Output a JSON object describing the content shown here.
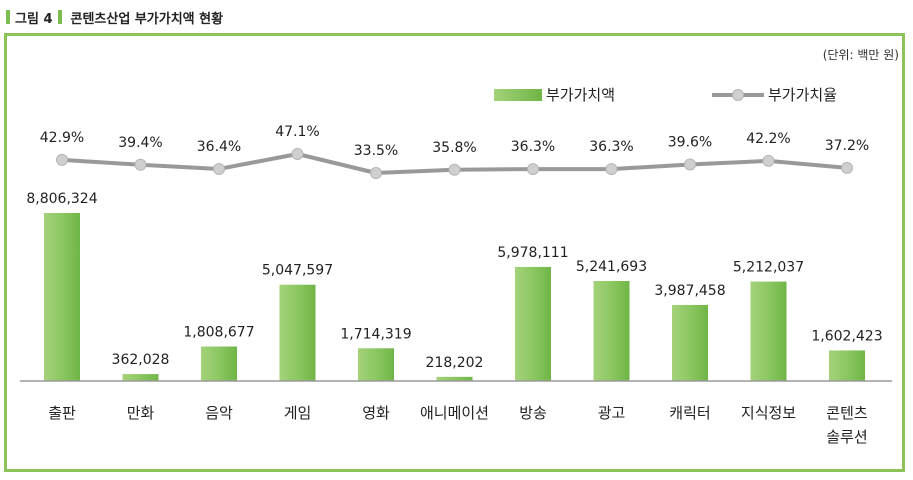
{
  "figure": {
    "label": "그림 4",
    "title": "콘텐츠산업 부가가치액 현황",
    "unit": "(단위: 백만 원)"
  },
  "colors": {
    "accent": "#8dc258",
    "bar_light": "#a4d27a",
    "bar_dark": "#6fb546",
    "line": "#999999",
    "marker": "#cfcfcf"
  },
  "chart_data": {
    "type": "bar",
    "categories": [
      "출판",
      "만화",
      "음악",
      "게임",
      "영화",
      "애니메이션",
      "방송",
      "광고",
      "캐릭터",
      "지식정보",
      "콘텐츠 솔루션"
    ],
    "series": [
      {
        "name": "부가가치액",
        "type": "bar",
        "values": [
          8806324,
          362028,
          1808677,
          5047597,
          1714319,
          218202,
          5978111,
          5241693,
          3987458,
          5212037,
          1602423
        ],
        "labels": [
          "8,806,324",
          "362,028",
          "1,808,677",
          "5,047,597",
          "1,714,319",
          "218,202",
          "5,978,111",
          "5,241,693",
          "3,987,458",
          "5,212,037",
          "1,602,423"
        ]
      },
      {
        "name": "부가가치율",
        "type": "line",
        "values": [
          42.9,
          39.4,
          36.4,
          47.1,
          33.5,
          35.8,
          36.3,
          36.3,
          39.6,
          42.2,
          37.2
        ],
        "labels": [
          "42.9%",
          "39.4%",
          "36.4%",
          "47.1%",
          "33.5%",
          "35.8%",
          "36.3%",
          "36.3%",
          "39.6%",
          "42.2%",
          "37.2%"
        ]
      }
    ],
    "legend": "top-right",
    "grid": false
  }
}
